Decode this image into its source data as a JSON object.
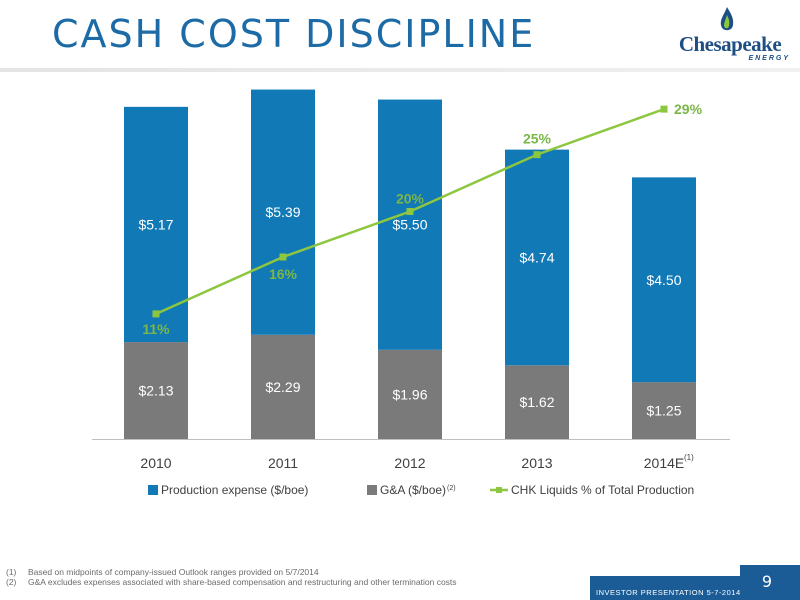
{
  "header": {
    "title": "CASH COST DISCIPLINE",
    "logo_text": "Chesapeake",
    "logo_subtext": "ENERGY"
  },
  "colors": {
    "production": "#1279b7",
    "ga": "#7a7a7a",
    "liquids_line": "#8dc63f",
    "liquids_label": "#7ab648",
    "title": "#1c6aa6",
    "footer": "#1b5c96"
  },
  "chart_data": {
    "type": "bar",
    "stacked": true,
    "categories": [
      "2010",
      "2011",
      "2012",
      "2013",
      "2014E"
    ],
    "category_superscripts": [
      "",
      "",
      "",
      "",
      "(1)"
    ],
    "series": [
      {
        "name": "G&A ($/boe)",
        "superscript": "(2)",
        "values": [
          2.13,
          2.29,
          1.96,
          1.62,
          1.25
        ],
        "labels": [
          "$2.13",
          "$2.29",
          "$1.96",
          "$1.62",
          "$1.25"
        ]
      },
      {
        "name": "Production expense ($/boe)",
        "superscript": "",
        "values": [
          5.17,
          5.39,
          5.5,
          4.74,
          4.5
        ],
        "labels": [
          "$5.17",
          "$5.39",
          "$5.50",
          "$4.74",
          "$4.50"
        ]
      }
    ],
    "line_series": {
      "name": "CHK Liquids % of Total Production",
      "values": [
        11,
        16,
        20,
        25,
        29
      ],
      "labels": [
        "11%",
        "16%",
        "20%",
        "25%",
        "29%"
      ],
      "ylim": [
        0,
        32
      ]
    },
    "ylim": [
      0,
      8.0
    ],
    "legend_order": [
      "Production expense ($/boe)",
      "G&A ($/boe)",
      "CHK Liquids % of Total Production"
    ],
    "legend_position": "bottom",
    "grid": false
  },
  "footnotes": [
    {
      "num": "(1)",
      "text": "Based on midpoints of company-issued Outlook ranges provided on 5/7/2014"
    },
    {
      "num": "(2)",
      "text": "G&A excludes expenses associated with share-based compensation and restructuring and other termination costs"
    }
  ],
  "footer": {
    "label": "INVESTOR PRESENTATION 5-7-2014",
    "page_number": "9"
  }
}
